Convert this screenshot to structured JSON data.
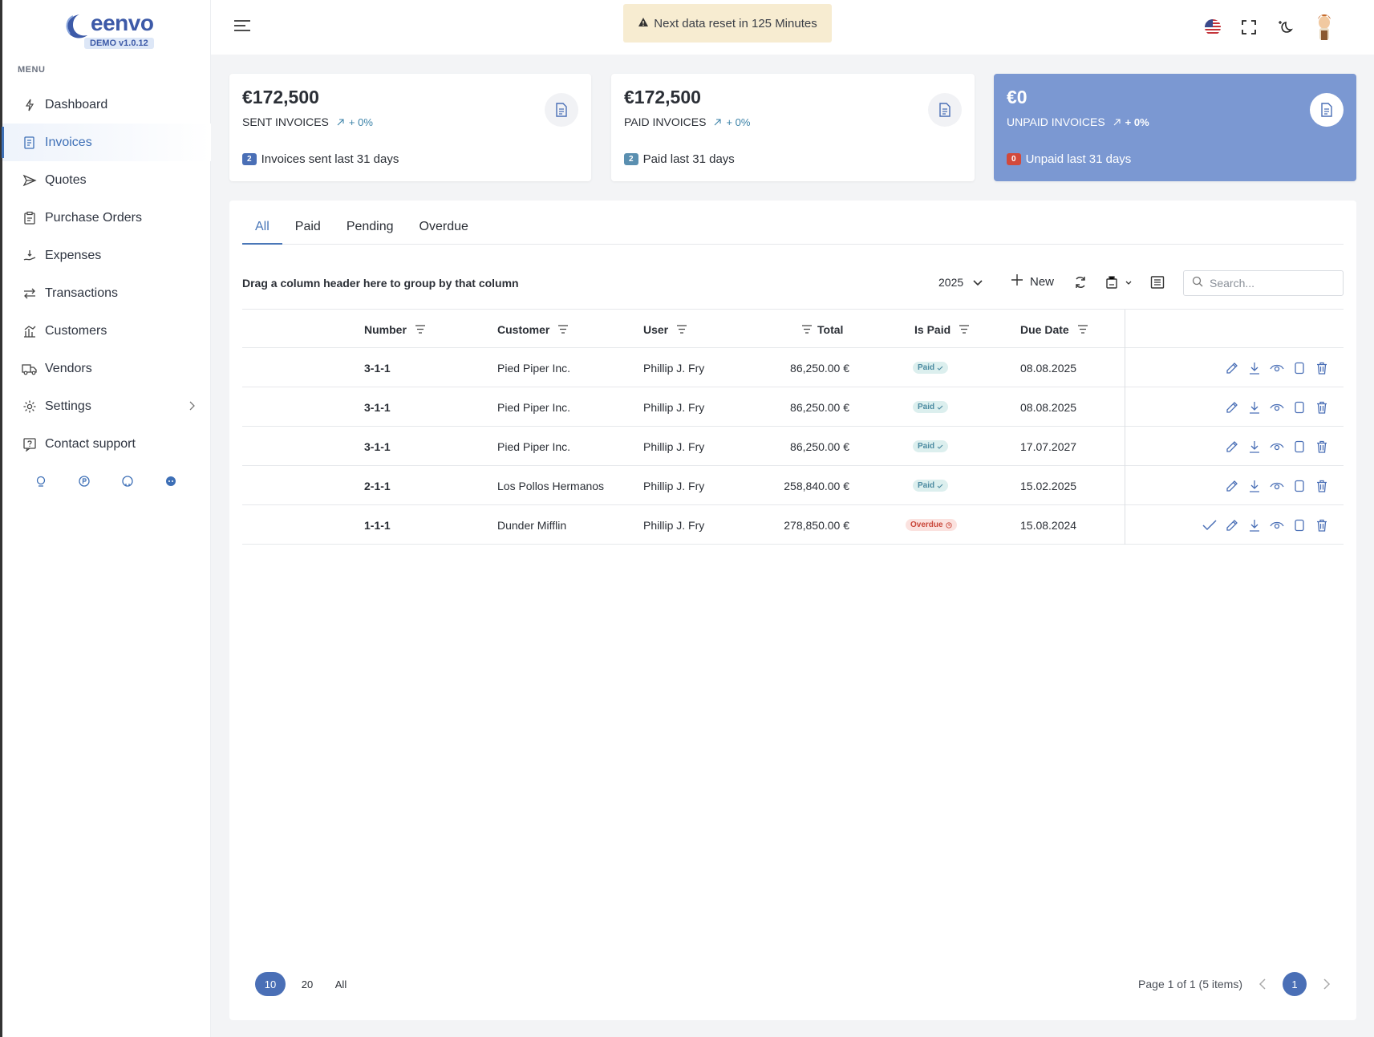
{
  "app": {
    "logo_text": "eenvo",
    "version_badge": "DEMO v1.0.12",
    "menu_heading": "MENU"
  },
  "sidebar": {
    "items": [
      {
        "label": "Dashboard",
        "icon": "dashboard-icon"
      },
      {
        "label": "Invoices",
        "icon": "invoice-icon",
        "active": true
      },
      {
        "label": "Quotes",
        "icon": "send-icon"
      },
      {
        "label": "Purchase Orders",
        "icon": "clipboard-icon"
      },
      {
        "label": "Expenses",
        "icon": "expense-icon"
      },
      {
        "label": "Transactions",
        "icon": "transfer-icon"
      },
      {
        "label": "Customers",
        "icon": "chart-icon"
      },
      {
        "label": "Vendors",
        "icon": "truck-icon"
      },
      {
        "label": "Settings",
        "icon": "gear-icon"
      },
      {
        "label": "Contact support",
        "icon": "help-icon"
      }
    ],
    "social": [
      "globe-icon",
      "product-hunt-icon",
      "github-icon",
      "reddit-icon"
    ]
  },
  "topbar": {
    "banner": "Next data reset in 125 Minutes",
    "icons": [
      "us-flag-icon",
      "fullscreen-icon",
      "dark-mode-icon",
      "avatar"
    ]
  },
  "stats": [
    {
      "amount": "€172,500",
      "label": "SENT INVOICES",
      "trend": "+ 0%",
      "count": "2",
      "footer": "Invoices sent last 31 days"
    },
    {
      "amount": "€172,500",
      "label": "PAID INVOICES",
      "trend": "+ 0%",
      "count": "2",
      "footer": "Paid last 31 days"
    },
    {
      "amount": "€0",
      "label": "UNPAID INVOICES",
      "trend": "+ 0%",
      "count": "0",
      "footer": "Unpaid last 31 days"
    }
  ],
  "tabs": [
    "All",
    "Paid",
    "Pending",
    "Overdue"
  ],
  "toolbar": {
    "group_hint": "Drag a column header here to group by that column",
    "year": "2025",
    "new_label": "New",
    "search_placeholder": "Search..."
  },
  "table": {
    "columns": [
      "Number",
      "Customer",
      "User",
      "Total",
      "Is Paid",
      "Due Date"
    ],
    "rows": [
      {
        "number": "3-1-1",
        "customer": "Pied Piper Inc.",
        "user": "Phillip J. Fry",
        "total": "86,250.00 €",
        "status": "Paid",
        "due": "08.08.2025"
      },
      {
        "number": "3-1-1",
        "customer": "Pied Piper Inc.",
        "user": "Phillip J. Fry",
        "total": "86,250.00 €",
        "status": "Paid",
        "due": "08.08.2025"
      },
      {
        "number": "3-1-1",
        "customer": "Pied Piper Inc.",
        "user": "Phillip J. Fry",
        "total": "86,250.00 €",
        "status": "Paid",
        "due": "17.07.2027"
      },
      {
        "number": "2-1-1",
        "customer": "Los Pollos Hermanos",
        "user": "Phillip J. Fry",
        "total": "258,840.00 €",
        "status": "Paid",
        "due": "15.02.2025"
      },
      {
        "number": "1-1-1",
        "customer": "Dunder Mifflin",
        "user": "Phillip J. Fry",
        "total": "278,850.00 €",
        "status": "Overdue",
        "due": "15.08.2024"
      }
    ]
  },
  "pager": {
    "sizes": [
      "10",
      "20",
      "All"
    ],
    "info": "Page 1 of 1 (5 items)",
    "current": "1"
  },
  "colors": {
    "accent": "#4a6fb6",
    "unpaid_card": "#7b98d2",
    "paid_badge": "#dcefee",
    "overdue_badge": "#fbe2df",
    "banner": "#f7ecd1"
  }
}
